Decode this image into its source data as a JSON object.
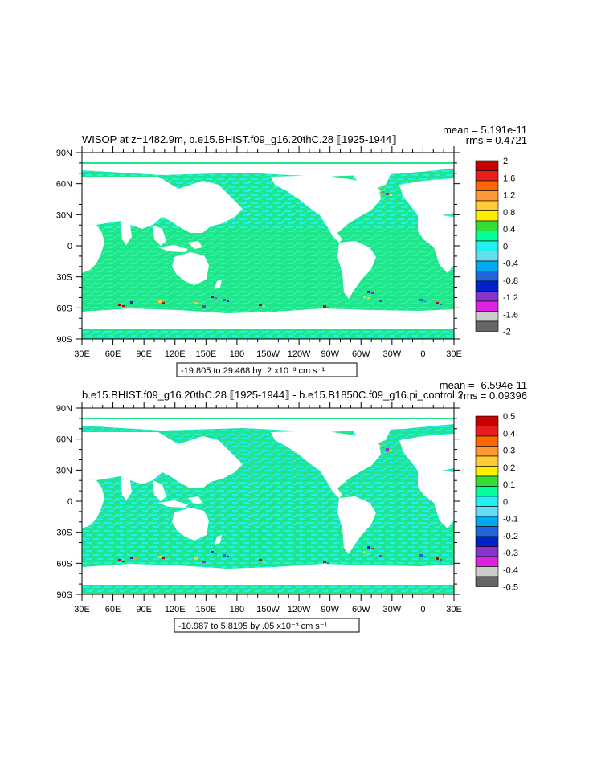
{
  "panels": [
    {
      "title": "WISOP at z=1482.9m, b.e15.BHIST.f09_g16.20thC.28 ⟦1925-1944⟧",
      "mean_label": "mean = 5.191e-11",
      "rms_label": "rms = 0.4721",
      "range_label": "-19.805 to 29.468 by .2 x10⁻³ cm s⁻¹",
      "colorbar_ticks": [
        "2",
        "1.6",
        "1.2",
        "0.8",
        "0.4",
        "0",
        "-0.4",
        "-0.8",
        "-1.2",
        "-1.6",
        "-2"
      ]
    },
    {
      "title": "b.e15.BHIST.f09_g16.20thC.28 ⟦1925-1944⟧ - b.e15.B1850C.f09_g16.pi_control.2",
      "mean_label": "mean = -6.594e-11",
      "rms_label": "rms = 0.09396",
      "range_label": "-10.987 to 5.8195 by .05 x10⁻³ cm s⁻¹",
      "colorbar_ticks": [
        "0.5",
        "0.4",
        "0.3",
        "0.2",
        "0.1",
        "0",
        "-0.1",
        "-0.2",
        "-0.3",
        "-0.4",
        "-0.5"
      ]
    }
  ],
  "axes": {
    "lon_labels": [
      "30E",
      "60E",
      "90E",
      "120E",
      "150E",
      "180",
      "150W",
      "120W",
      "90W",
      "60W",
      "30W",
      "0",
      "30E"
    ],
    "lat_labels": [
      "90N",
      "60N",
      "30N",
      "0",
      "30S",
      "60S",
      "90S"
    ]
  },
  "colors": {
    "ocean": "#1fe58c",
    "ocean_alt": "#22f0f0",
    "land": "#ffffff",
    "colorbar": [
      "#c80000",
      "#e81e1e",
      "#ff6600",
      "#ff9933",
      "#ffcc33",
      "#ffee00",
      "#33dd33",
      "#00ff99",
      "#22f0f0",
      "#66ddee",
      "#00aaee",
      "#2266dd",
      "#0022cc",
      "#8833cc",
      "#dd22dd",
      "#cccccc",
      "#666666"
    ]
  },
  "chart_data": [
    {
      "type": "heatmap",
      "title": "WISOP at z=1482.9m, b.e15.BHIST.f09_g16.20thC.28 ⟦1925-1944⟧",
      "x_ticks": [
        "30E",
        "60E",
        "90E",
        "120E",
        "150E",
        "180",
        "150W",
        "120W",
        "90W",
        "60W",
        "30W",
        "0",
        "30E"
      ],
      "y_ticks": [
        "90N",
        "60N",
        "30N",
        "0",
        "30S",
        "60S",
        "90S"
      ],
      "xlim": [
        30,
        390
      ],
      "ylim": [
        -90,
        90
      ],
      "colorbar_levels": [
        -2,
        -1.6,
        -1.2,
        -0.8,
        -0.4,
        0,
        0.4,
        0.8,
        1.2,
        1.6,
        2
      ],
      "mean": 5.191e-11,
      "rms": 0.4721,
      "min": -19.805,
      "max": 29.468,
      "interval": 0.2,
      "units": "x10⁻³ cm s⁻¹"
    },
    {
      "type": "heatmap",
      "title": "b.e15.BHIST.f09_g16.20thC.28 ⟦1925-1944⟧ - b.e15.B1850C.f09_g16.pi_control.2",
      "x_ticks": [
        "30E",
        "60E",
        "90E",
        "120E",
        "150E",
        "180",
        "150W",
        "120W",
        "90W",
        "60W",
        "30W",
        "0",
        "30E"
      ],
      "y_ticks": [
        "90N",
        "60N",
        "30N",
        "0",
        "30S",
        "60S",
        "90S"
      ],
      "xlim": [
        30,
        390
      ],
      "ylim": [
        -90,
        90
      ],
      "colorbar_levels": [
        -0.5,
        -0.4,
        -0.3,
        -0.2,
        -0.1,
        0,
        0.1,
        0.2,
        0.3,
        0.4,
        0.5
      ],
      "mean": -6.594e-11,
      "rms": 0.09396,
      "min": -10.987,
      "max": 5.8195,
      "interval": 0.05,
      "units": "x10⁻³ cm s⁻¹"
    }
  ]
}
